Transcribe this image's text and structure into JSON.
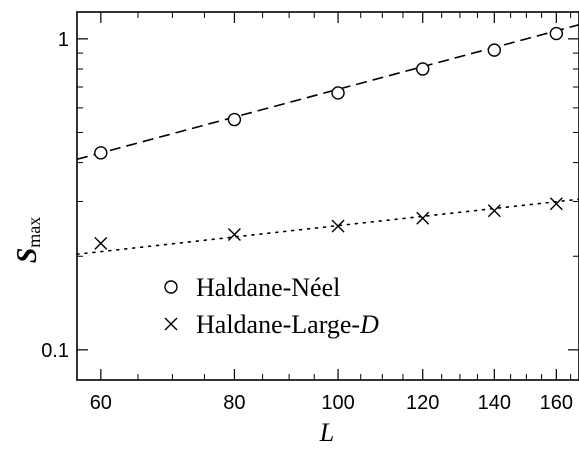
{
  "chart_data": {
    "type": "scatter",
    "xlabel": "L",
    "ylabel": {
      "main": "S",
      "sub": "max"
    },
    "xscale": "log",
    "yscale": "log",
    "xlim": [
      57,
      168
    ],
    "ylim": [
      0.08,
      1.22
    ],
    "x_ticks": [
      60,
      80,
      100,
      120,
      140,
      160
    ],
    "x_tick_labels": [
      "60",
      "80",
      "100",
      "120",
      "140",
      "160"
    ],
    "y_ticks": [
      0.1,
      1
    ],
    "y_tick_labels": [
      "0.1",
      "1"
    ],
    "grid": false,
    "legend_position": "lower-left",
    "series": [
      {
        "name": "Haldane-Néel",
        "marker": "circle",
        "fit_style": "dashed",
        "x": [
          60,
          80,
          100,
          120,
          140,
          160
        ],
        "y": [
          0.43,
          0.55,
          0.67,
          0.8,
          0.92,
          1.04
        ],
        "fit": {
          "x": [
            57,
            168
          ],
          "y": [
            0.41,
            1.11
          ]
        }
      },
      {
        "name": "Haldane-Large-D",
        "marker": "cross",
        "fit_style": "dotted",
        "x": [
          60,
          80,
          100,
          120,
          140,
          160
        ],
        "y": [
          0.22,
          0.235,
          0.25,
          0.265,
          0.28,
          0.295
        ],
        "fit": {
          "x": [
            57,
            168
          ],
          "y": [
            0.203,
            0.305
          ]
        }
      }
    ]
  },
  "legend": {
    "items": [
      {
        "marker": "circle",
        "label": "Haldane-Néel"
      },
      {
        "marker": "cross",
        "label_prefix": "Haldane-Large-",
        "label_italic": "D"
      }
    ]
  }
}
